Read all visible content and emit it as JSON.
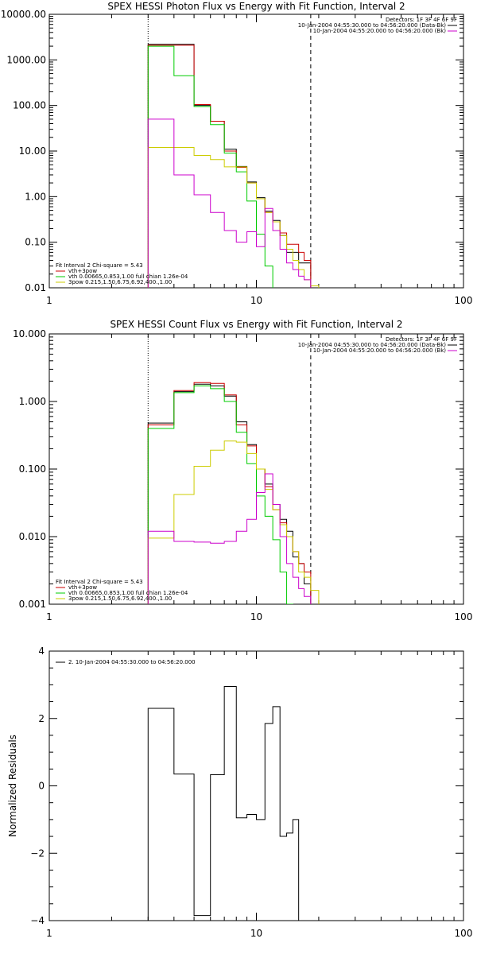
{
  "chart_data": [
    {
      "type": "line",
      "title": "SPEX HESSI Photon Flux vs Energy with Fit Function, Interval 2",
      "xlabel": "",
      "ylabel": "",
      "xscale": "log",
      "yscale": "log",
      "xlim": [
        1,
        100
      ],
      "ylim": [
        0.01,
        10000
      ],
      "x_tick_labels": [
        "1",
        "10",
        "100"
      ],
      "y_tick_labels": [
        "0.01",
        "0.10",
        "1.00",
        "10.00",
        "100.00",
        "1000.00",
        "10000.00"
      ],
      "vlines": [
        {
          "x": 3.0,
          "style": "dotted"
        },
        {
          "x": 18.3,
          "style": "dashed"
        }
      ],
      "legend_left": [
        {
          "text": "Fit Interval 2   Chi-square = 5.43",
          "color": "#000000"
        },
        {
          "text": "vth+3pow",
          "color": "#cc0000"
        },
        {
          "text": "vth 0.00665,0.853,1.00   full chian 1.26e-04",
          "color": "#00cc00"
        },
        {
          "text": "3pow 0.215,1.50,6.75,6.92,400.,1.00",
          "color": "#cccc00"
        }
      ],
      "legend_right": [
        {
          "text": "Detectors: 1F 3F 4F 6F 9F",
          "color": ""
        },
        {
          "text": "10-Jan-2004 04:55:30.000 to 04:56:20.000 (Data-Bk)",
          "color": "#000000"
        },
        {
          "text": "10-Jan-2004 04:55:20.000 to 04:56:20.000 (Bk)",
          "color": "#cc00cc"
        }
      ],
      "bin_edges": [
        3.0,
        4.0,
        5.0,
        6.0,
        7.0,
        8.0,
        9.0,
        10.0,
        11.0,
        12.0,
        13.0,
        14.0,
        15.0,
        16.0,
        17.0,
        18.3,
        20.0
      ],
      "series": [
        {
          "color": "#000000",
          "values": [
            2200,
            2200,
            100,
            45,
            11,
            4.6,
            2.1,
            0.95,
            0.48,
            0.3,
            0.14,
            0.06,
            0.06,
            0.035,
            0.035,
            null
          ]
        },
        {
          "color": "#cc0000",
          "values": [
            2100,
            2100,
            105,
            45,
            10,
            4.4,
            2.0,
            0.9,
            0.45,
            0.28,
            0.16,
            0.09,
            0.09,
            0.06,
            0.04,
            null
          ]
        },
        {
          "color": "#00cc00",
          "values": [
            2000,
            450,
            95,
            38,
            9.0,
            3.5,
            0.8,
            0.15,
            0.03,
            0.006,
            null,
            null,
            null,
            null,
            null,
            null
          ]
        },
        {
          "color": "#cccc00",
          "values": [
            12,
            12,
            8,
            6.5,
            4.5,
            4.5,
            2.0,
            0.9,
            0.45,
            0.28,
            0.14,
            0.07,
            0.04,
            0.025,
            0.015,
            0.011
          ]
        },
        {
          "color": "#cc00cc",
          "values": [
            50,
            3.0,
            1.1,
            0.45,
            0.18,
            0.1,
            0.17,
            0.08,
            0.55,
            0.18,
            0.07,
            0.035,
            0.025,
            0.018,
            0.015,
            null
          ]
        }
      ]
    },
    {
      "type": "line",
      "title": "SPEX HESSI Count Flux vs Energy with Fit Function, Interval 2",
      "xlabel": "",
      "ylabel": "",
      "xscale": "log",
      "yscale": "log",
      "xlim": [
        1,
        100
      ],
      "ylim": [
        0.001,
        10
      ],
      "x_tick_labels": [
        "1",
        "10",
        "100"
      ],
      "y_tick_labels": [
        "0.001",
        "0.010",
        "0.100",
        "1.000",
        "10.000"
      ],
      "vlines": [
        {
          "x": 3.0,
          "style": "dotted"
        },
        {
          "x": 18.3,
          "style": "dashed"
        }
      ],
      "legend_left": [
        {
          "text": "Fit Interval 2   Chi-square = 5.43",
          "color": "#000000"
        },
        {
          "text": "vth+3pow",
          "color": "#cc0000"
        },
        {
          "text": "vth 0.00665,0.853,1.00   full chian 1.26e-04",
          "color": "#00cc00"
        },
        {
          "text": "3pow 0.215,1.50,6.75,6.92,400.,1.00",
          "color": "#cccc00"
        }
      ],
      "legend_right": [
        {
          "text": "Detectors: 1F 3F 4F 6F 9F",
          "color": ""
        },
        {
          "text": "10-Jan-2004 04:55:30.000 to 04:56:20.000 (Data-Bk)",
          "color": "#000000"
        },
        {
          "text": "10-Jan-2004 04:55:20.000 to 04:56:20.000 (Bk)",
          "color": "#cc00cc"
        }
      ],
      "bin_edges": [
        3.0,
        4.0,
        5.0,
        6.0,
        7.0,
        8.0,
        9.0,
        10.0,
        11.0,
        12.0,
        13.0,
        14.0,
        15.0,
        16.0,
        17.0,
        18.3,
        20.0
      ],
      "series": [
        {
          "color": "#000000",
          "values": [
            0.48,
            1.4,
            1.8,
            1.7,
            1.2,
            0.5,
            0.23,
            0.1,
            0.06,
            0.03,
            0.018,
            0.012,
            0.005,
            0.004,
            0.002,
            null
          ]
        },
        {
          "color": "#cc0000",
          "values": [
            0.45,
            1.45,
            1.9,
            1.85,
            1.25,
            0.45,
            0.22,
            0.1,
            0.055,
            0.025,
            0.016,
            0.01,
            0.006,
            0.004,
            0.003,
            null
          ]
        },
        {
          "color": "#00cc00",
          "values": [
            0.4,
            1.35,
            1.7,
            1.55,
            1.0,
            0.35,
            0.12,
            0.04,
            0.02,
            0.009,
            0.003,
            0.001,
            null,
            null,
            null,
            null
          ]
        },
        {
          "color": "#cccc00",
          "values": [
            0.0095,
            0.042,
            0.11,
            0.19,
            0.26,
            0.25,
            0.17,
            0.1,
            0.05,
            0.025,
            0.015,
            0.01,
            0.006,
            0.003,
            0.0025,
            0.0016
          ]
        },
        {
          "color": "#cc00cc",
          "values": [
            0.012,
            0.0085,
            0.0083,
            0.008,
            0.0085,
            0.012,
            0.018,
            0.045,
            0.085,
            0.03,
            0.01,
            0.004,
            0.0025,
            0.0017,
            0.0013,
            null
          ]
        }
      ]
    },
    {
      "type": "line",
      "title": "",
      "xlabel": "",
      "ylabel": "Normalized Residuals",
      "xscale": "log",
      "yscale": "linear",
      "xlim": [
        1,
        100
      ],
      "ylim": [
        -4,
        4
      ],
      "x_tick_labels": [
        "1",
        "10",
        "100"
      ],
      "y_tick_labels": [
        "4",
        "2",
        "0",
        "−2",
        "−4"
      ],
      "legend_left": [
        {
          "text": "2. 10-Jan-2004 04:55:30.000 to 04:56:20.000",
          "color": "#000000"
        }
      ],
      "bin_edges": [
        3.0,
        4.0,
        5.0,
        6.0,
        7.0,
        8.0,
        9.0,
        10.0,
        11.0,
        12.0,
        13.0,
        14.0,
        15.0,
        16.0,
        17.0,
        18.3
      ],
      "series": [
        {
          "color": "#000000",
          "values": [
            2.3,
            0.35,
            -3.85,
            0.33,
            2.95,
            -0.95,
            -0.85,
            -1.0,
            1.85,
            2.35,
            -1.5,
            -1.4,
            -1.0,
            null,
            null
          ]
        }
      ]
    }
  ]
}
